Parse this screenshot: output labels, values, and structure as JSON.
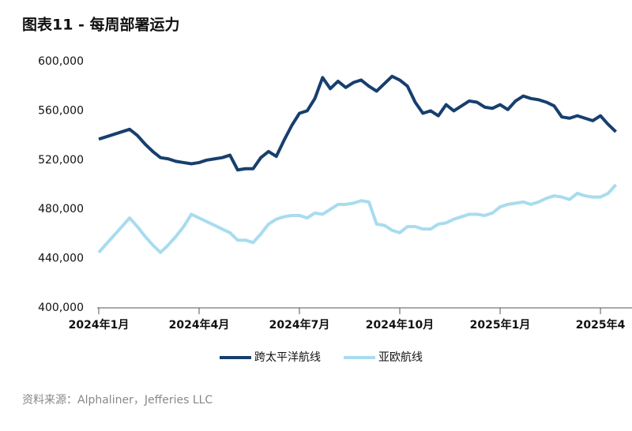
{
  "chart_data": {
    "type": "line",
    "title": "图表11 - 每周部署运力",
    "source": "资料来源：Alphaliner，Jefferies LLC",
    "categories": [
      "2024年1月",
      null,
      null,
      null,
      null,
      null,
      null,
      null,
      null,
      null,
      null,
      null,
      null,
      "2024年4月",
      null,
      null,
      null,
      null,
      null,
      null,
      null,
      null,
      null,
      null,
      null,
      null,
      "2024年7月",
      null,
      null,
      null,
      null,
      null,
      null,
      null,
      null,
      null,
      null,
      null,
      null,
      "2024年10月",
      null,
      null,
      null,
      null,
      null,
      null,
      null,
      null,
      null,
      null,
      null,
      null,
      "2025年1月",
      null,
      null,
      null,
      null,
      null,
      null,
      null,
      null,
      null,
      null,
      null,
      null,
      "2025年4",
      null,
      null
    ],
    "series": [
      {
        "name": "跨太平洋航线",
        "color": "#173f6e",
        "values": [
          537000,
          539000,
          541000,
          543000,
          545000,
          540000,
          533000,
          527000,
          522000,
          521000,
          519000,
          518000,
          517000,
          518000,
          520000,
          521000,
          522000,
          524000,
          512000,
          513000,
          513000,
          522000,
          527000,
          523000,
          536000,
          548000,
          558000,
          560000,
          570000,
          587000,
          578000,
          584000,
          579000,
          583000,
          585000,
          580000,
          576000,
          582000,
          588000,
          585000,
          580000,
          567000,
          558000,
          560000,
          556000,
          565000,
          560000,
          564000,
          568000,
          567000,
          563000,
          562000,
          565000,
          561000,
          568000,
          572000,
          570000,
          569000,
          567000,
          564000,
          555000,
          554000,
          556000,
          554000,
          552000,
          556000,
          549000,
          543000
        ]
      },
      {
        "name": "亚欧航线",
        "color": "#a8dcef",
        "values": [
          445000,
          452000,
          459000,
          466000,
          473000,
          466000,
          458000,
          451000,
          445000,
          451000,
          458000,
          466000,
          476000,
          473000,
          470000,
          467000,
          464000,
          461000,
          455000,
          455000,
          453000,
          460000,
          468000,
          472000,
          474000,
          475000,
          475000,
          473000,
          477000,
          476000,
          480000,
          484000,
          484000,
          485000,
          487000,
          486000,
          468000,
          467000,
          463000,
          461000,
          466000,
          466000,
          464000,
          464000,
          468000,
          469000,
          472000,
          474000,
          476000,
          476000,
          475000,
          477000,
          482000,
          484000,
          485000,
          486000,
          484000,
          486000,
          489000,
          491000,
          490000,
          488000,
          493000,
          491000,
          490000,
          490000,
          493000,
          500000
        ]
      }
    ],
    "ylim": [
      400000,
      600000
    ],
    "yticks": [
      {
        "value": 400000,
        "label": "400,000"
      },
      {
        "value": 440000,
        "label": "440,000"
      },
      {
        "value": 480000,
        "label": "480,000"
      },
      {
        "value": 520000,
        "label": "520,000"
      },
      {
        "value": 560000,
        "label": "560,000"
      },
      {
        "value": 600000,
        "label": "600,000"
      }
    ],
    "grid": false
  }
}
